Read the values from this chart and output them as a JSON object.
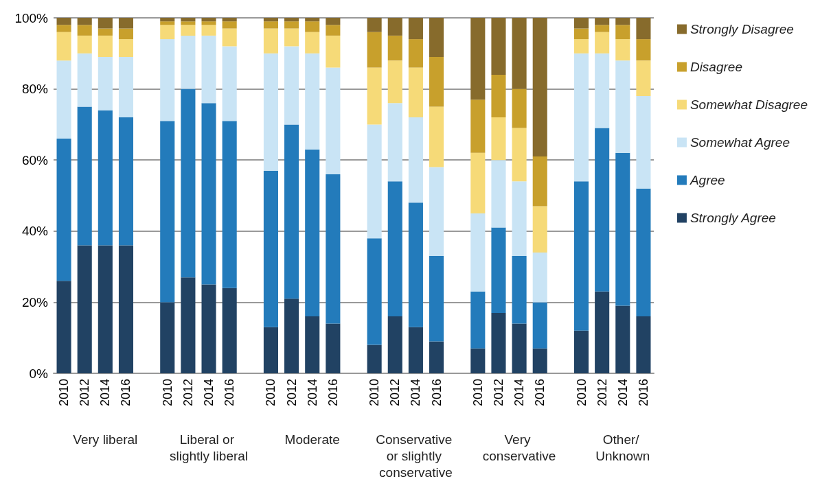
{
  "chart_data": {
    "type": "bar",
    "stacked": true,
    "categories": [
      "2010",
      "2012",
      "2014",
      "2016",
      null,
      "2010",
      "2012",
      "2014",
      "2016",
      null,
      "2010",
      "2012",
      "2014",
      "2016",
      null,
      "2010",
      "2012",
      "2014",
      "2016",
      null,
      "2010",
      "2012",
      "2014",
      "2016",
      null,
      "2010",
      "2012",
      "2014",
      "2016"
    ],
    "series": [
      {
        "name": "Strongly Agree",
        "color": "#214263",
        "values": [
          26,
          36,
          36,
          36,
          null,
          20,
          27,
          25,
          24,
          null,
          13,
          21,
          16,
          14,
          null,
          8,
          16,
          13,
          9,
          null,
          7,
          17,
          14,
          7,
          null,
          12,
          23,
          19,
          16
        ]
      },
      {
        "name": "Agree",
        "color": "#237bbb",
        "values": [
          40,
          39,
          38,
          36,
          null,
          51,
          53,
          51,
          47,
          null,
          44,
          49,
          47,
          42,
          null,
          30,
          38,
          35,
          24,
          null,
          16,
          24,
          19,
          13,
          null,
          42,
          46,
          43,
          36
        ]
      },
      {
        "name": "Somewhat Agree",
        "color": "#c9e4f5",
        "values": [
          22,
          15,
          15,
          17,
          null,
          23,
          15,
          19,
          21,
          null,
          33,
          22,
          27,
          30,
          null,
          32,
          22,
          24,
          25,
          null,
          22,
          19,
          21,
          14,
          null,
          36,
          21,
          26,
          26
        ]
      },
      {
        "name": "Somewhat Disagree",
        "color": "#f6da78",
        "values": [
          8,
          5,
          6,
          5,
          null,
          4,
          3,
          3,
          5,
          null,
          7,
          5,
          6,
          9,
          null,
          16,
          12,
          14,
          17,
          null,
          17,
          12,
          15,
          13,
          null,
          4,
          6,
          6,
          10
        ]
      },
      {
        "name": "Disagree",
        "color": "#c8a02c",
        "values": [
          2,
          3,
          2,
          3,
          null,
          1,
          1,
          1,
          2,
          null,
          2,
          2,
          3,
          3,
          null,
          10,
          7,
          8,
          14,
          null,
          15,
          12,
          11,
          14,
          null,
          3,
          2,
          4,
          6
        ]
      },
      {
        "name": "Strongly Disagree",
        "color": "#876b2c",
        "values": [
          2,
          2,
          3,
          3,
          null,
          1,
          1,
          1,
          1,
          null,
          1,
          1,
          1,
          2,
          null,
          4,
          5,
          6,
          11,
          null,
          23,
          16,
          20,
          39,
          null,
          3,
          2,
          2,
          6
        ]
      }
    ],
    "ylim": [
      0,
      100
    ],
    "yticks": [
      {
        "value": 0,
        "label": "0%"
      },
      {
        "value": 20,
        "label": "20%"
      },
      {
        "value": 40,
        "label": "40%"
      },
      {
        "value": 60,
        "label": "60%"
      },
      {
        "value": 80,
        "label": "80%"
      },
      {
        "value": 100,
        "label": "100%"
      }
    ],
    "grid": "y",
    "legend": "right",
    "annotations": [
      "Very liberal",
      "Liberal or slightly liberal",
      "Moderate",
      "Conservative or slightly conservative",
      "Very conservative",
      "Other/ Unknown"
    ]
  }
}
